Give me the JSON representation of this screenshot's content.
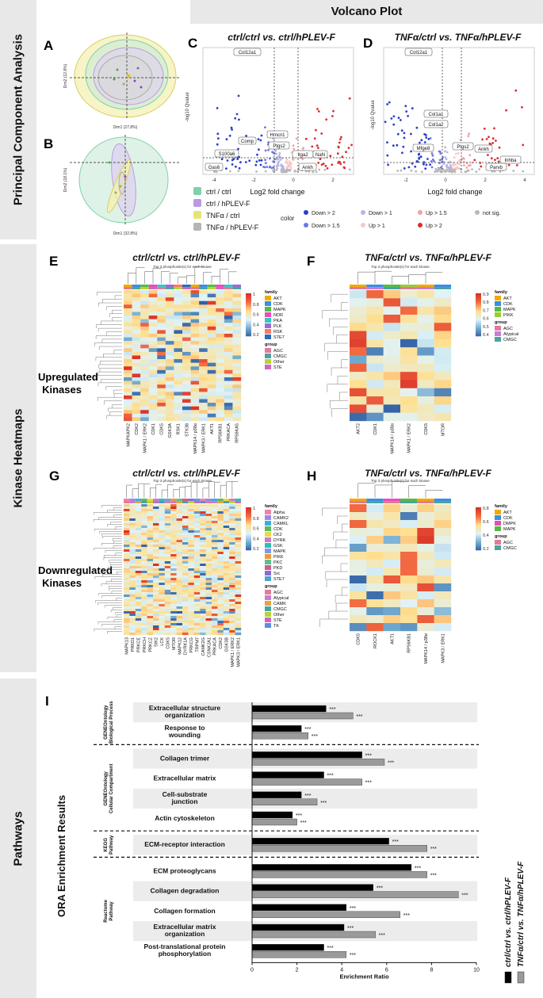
{
  "sections": {
    "pca": "Principal Component Analysis",
    "kinase": "Kinase Heatmaps",
    "pathways": "Pathways",
    "volcano": "Volcano Plot"
  },
  "panel_letters": {
    "A": "A",
    "B": "B",
    "C": "C",
    "D": "D",
    "E": "E",
    "F": "F",
    "G": "G",
    "H": "H",
    "I": "I"
  },
  "comparisons": {
    "ctrl": "ctrl/ctrl vs. ctrl/hPLEV-F",
    "tnf": "TNFα/ctrl vs. TNFα/hPLEV-F"
  },
  "row_labels": {
    "up": "Upregulated Kinases",
    "down": "Downregulated Kinases"
  },
  "pca": {
    "A": {
      "xlab": "Dim1 (27.8%)",
      "ylab": "Dim2 (12.8%)"
    },
    "B": {
      "xlab": "Dim1 (32.8%)",
      "ylab": "Dim2 (18.1%)"
    },
    "legend": [
      "ctrl / ctrl",
      "ctrl / hPLEV-F",
      "TNFα / ctrl",
      "TNFα / hPLEV-F"
    ],
    "legend_colors": [
      "#7fd1a8",
      "#b99ce0",
      "#e8e27a",
      "#b5b5b5"
    ]
  },
  "volcano": {
    "xlabel": "Log2 fold change",
    "ylabel": "-log10 Qvalue",
    "C_genes": [
      "Col12a1",
      "Hmcn1",
      "Ptgs2",
      "Itga2",
      "NaN",
      "Comp",
      "S100a6",
      "Gas6",
      "Ankh"
    ],
    "D_genes": [
      "Col12a1",
      "Col1a1",
      "Col1a2",
      "Mfge8",
      "Ptgs2",
      "Ankh",
      "Inhba",
      "Parvb"
    ],
    "C_xticks": [
      "-4",
      "-2",
      "0",
      "2"
    ],
    "D_xticks": [
      "-2",
      "0",
      "2",
      "4"
    ],
    "legend_title": "color",
    "legend": [
      "Down > 2",
      "Down > 1",
      "Up > 1.5",
      "not sig.",
      "Down > 1.5",
      "Up > 1",
      "Up > 2"
    ],
    "legend_colors": [
      "#2b3fc8",
      "#b9b4e6",
      "#f0a3a3",
      "#b8b8b8",
      "#6a78e0",
      "#f5c9c9",
      "#d93030"
    ]
  },
  "heatmap_title": "Top 3 phosphosite(s) for each kinase",
  "heatmaps": {
    "E": {
      "kinases": [
        "MAPKAPK2",
        "CDK2",
        "MAPK1 / ERK2",
        "CDK1",
        "CDK5",
        "GSK3A",
        "RSK1",
        "STK38",
        "MAPK14 / p38α",
        "MAPK3 / ERK1",
        "AKT1",
        "RPS6KB1",
        "PRKACA",
        "RPS6KA5"
      ],
      "family": [
        "AKT",
        "CDK",
        "MAPK",
        "NDR",
        "PKA",
        "PLK",
        "RSK",
        "STE7"
      ],
      "family_colors": [
        "#f2a900",
        "#3a8ee6",
        "#55bb44",
        "#e84db8",
        "#32c8c8",
        "#9c6ad6",
        "#ff7a59",
        "#2a6bbf"
      ],
      "group": [
        "AGC",
        "CMGC",
        "Other",
        "STE"
      ],
      "group_colors": [
        "#e07b9b",
        "#4aa3a3",
        "#b8d432",
        "#d066c6"
      ],
      "scale": [
        "1",
        "0.8",
        "0.6",
        "0.4",
        "0.2"
      ]
    },
    "F": {
      "kinases": [
        "AKT2",
        "CDK1",
        "MAPK14 / p38α",
        "MAPK1 / ERK2",
        "CDK5",
        "MTOR"
      ],
      "family": [
        "AKT",
        "CDK",
        "MAPK",
        "PIKK"
      ],
      "family_colors": [
        "#f2a900",
        "#3a8ee6",
        "#55bb44",
        "#9acd32"
      ],
      "group": [
        "AGC",
        "Atypical",
        "CMGC"
      ],
      "group_colors": [
        "#e07b9b",
        "#c77dd6",
        "#4aa3a3"
      ],
      "scale": [
        "0.9",
        "0.8",
        "0.7",
        "0.6",
        "0.5",
        "0.4"
      ]
    },
    "G": {
      "kinases": [
        "MAPK13",
        "PRKD1",
        "PRKCE",
        "PRKCH",
        "PRKCZ",
        "SIK2",
        "LCK",
        "CDK5",
        "MTOR",
        "MAPK12",
        "DYRK1A",
        "PRKCG",
        "TRPM7",
        "CAMK2G",
        "CSNK2A1",
        "PRKACA",
        "CDK2",
        "GSK3B",
        "MAPK1 / ERK2",
        "MAPK3 / ERK1"
      ],
      "family": [
        "Alpha",
        "CAMK2",
        "CAMKL",
        "CDK",
        "CK2",
        "DYRK",
        "GSK",
        "MAPK",
        "PIKK",
        "PKC",
        "PKD",
        "Src",
        "STE7"
      ],
      "family_colors": [
        "#f27fb0",
        "#9a8be0",
        "#3aaee0",
        "#5fb85f",
        "#e8d84a",
        "#c97ad0",
        "#2fbfb0",
        "#7d9ae6",
        "#e89a3a",
        "#5ac18e",
        "#d35a8a",
        "#8a6ad6",
        "#50a0d8"
      ],
      "group": [
        "AGC",
        "Atypical",
        "CAMK",
        "CMGC",
        "Other",
        "STE",
        "TK"
      ],
      "group_colors": [
        "#e07b9b",
        "#c77dd6",
        "#e6a23c",
        "#4aa3a3",
        "#b8d432",
        "#d066c6",
        "#5b8de0"
      ],
      "scale": [
        "1",
        "0.8",
        "0.6",
        "0.4",
        "0.2"
      ]
    },
    "H": {
      "kinases": [
        "CDK5",
        "ROCK1",
        "AKT1",
        "RPS6KB1",
        "MAPK14 / p38α",
        "MAPK3 / ERK1"
      ],
      "family": [
        "AKT",
        "CDK",
        "DMPK",
        "MAPK"
      ],
      "family_colors": [
        "#f2a900",
        "#3a8ee6",
        "#e84db8",
        "#55bb44"
      ],
      "group": [
        "AGC",
        "CMGC"
      ],
      "group_colors": [
        "#e07b9b",
        "#4aa3a3"
      ],
      "scale": [
        "0.8",
        "0.6",
        "0.4",
        "0.2"
      ]
    }
  },
  "chart_data": {
    "type": "bar",
    "orientation": "horizontal",
    "title": "ORA Enrichment Results",
    "xlabel": "Enrichment Ratio",
    "xlim": [
      0,
      10
    ],
    "xticks": [
      "0",
      "2",
      "4",
      "6",
      "8",
      "10"
    ],
    "series": [
      {
        "name": "ctrl/ctrl vs. ctrl/hPLEV-F",
        "color": "#000000"
      },
      {
        "name": "TNFα/ctrl vs. TNFα/hPLEV-F",
        "color": "#9a9a9a"
      }
    ],
    "groups": [
      {
        "name": "GENEOntology Biological Process",
        "terms": [
          {
            "label": "Extracellular structure organization",
            "values": [
              3.3,
              4.5
            ],
            "sig": [
              "***",
              "***"
            ]
          },
          {
            "label": "Response to wounding",
            "values": [
              2.2,
              2.5
            ],
            "sig": [
              "***",
              "***"
            ]
          }
        ]
      },
      {
        "name": "GENEOntology Cellular Compartment",
        "terms": [
          {
            "label": "Collagen trimer",
            "values": [
              4.9,
              5.9
            ],
            "sig": [
              "***",
              "***"
            ]
          },
          {
            "label": "Extracellular matrix",
            "values": [
              3.2,
              4.9
            ],
            "sig": [
              "***",
              "***"
            ]
          },
          {
            "label": "Cell-substrate junction",
            "values": [
              2.2,
              2.9
            ],
            "sig": [
              "***",
              "***"
            ]
          },
          {
            "label": "Actin cytoskeleton",
            "values": [
              1.8,
              2.0
            ],
            "sig": [
              "***",
              "***"
            ]
          }
        ]
      },
      {
        "name": "KEGG Pathway",
        "terms": [
          {
            "label": "ECM-receptor interaction",
            "values": [
              6.1,
              7.8
            ],
            "sig": [
              "***",
              "***"
            ]
          }
        ]
      },
      {
        "name": "Reactome Pathway",
        "terms": [
          {
            "label": "ECM proteoglycans",
            "values": [
              7.1,
              7.8
            ],
            "sig": [
              "***",
              "***"
            ]
          },
          {
            "label": "Collagen degradation",
            "values": [
              5.4,
              9.2
            ],
            "sig": [
              "***",
              "***"
            ]
          },
          {
            "label": "Collagen formation",
            "values": [
              4.2,
              6.6
            ],
            "sig": [
              "***",
              "***"
            ]
          },
          {
            "label": "Extracellular matrix organization",
            "values": [
              4.1,
              5.5
            ],
            "sig": [
              "***",
              "***"
            ]
          },
          {
            "label": "Post-translational protein phosphorylation",
            "values": [
              3.2,
              4.2
            ],
            "sig": [
              "***",
              "***"
            ]
          }
        ]
      }
    ]
  }
}
